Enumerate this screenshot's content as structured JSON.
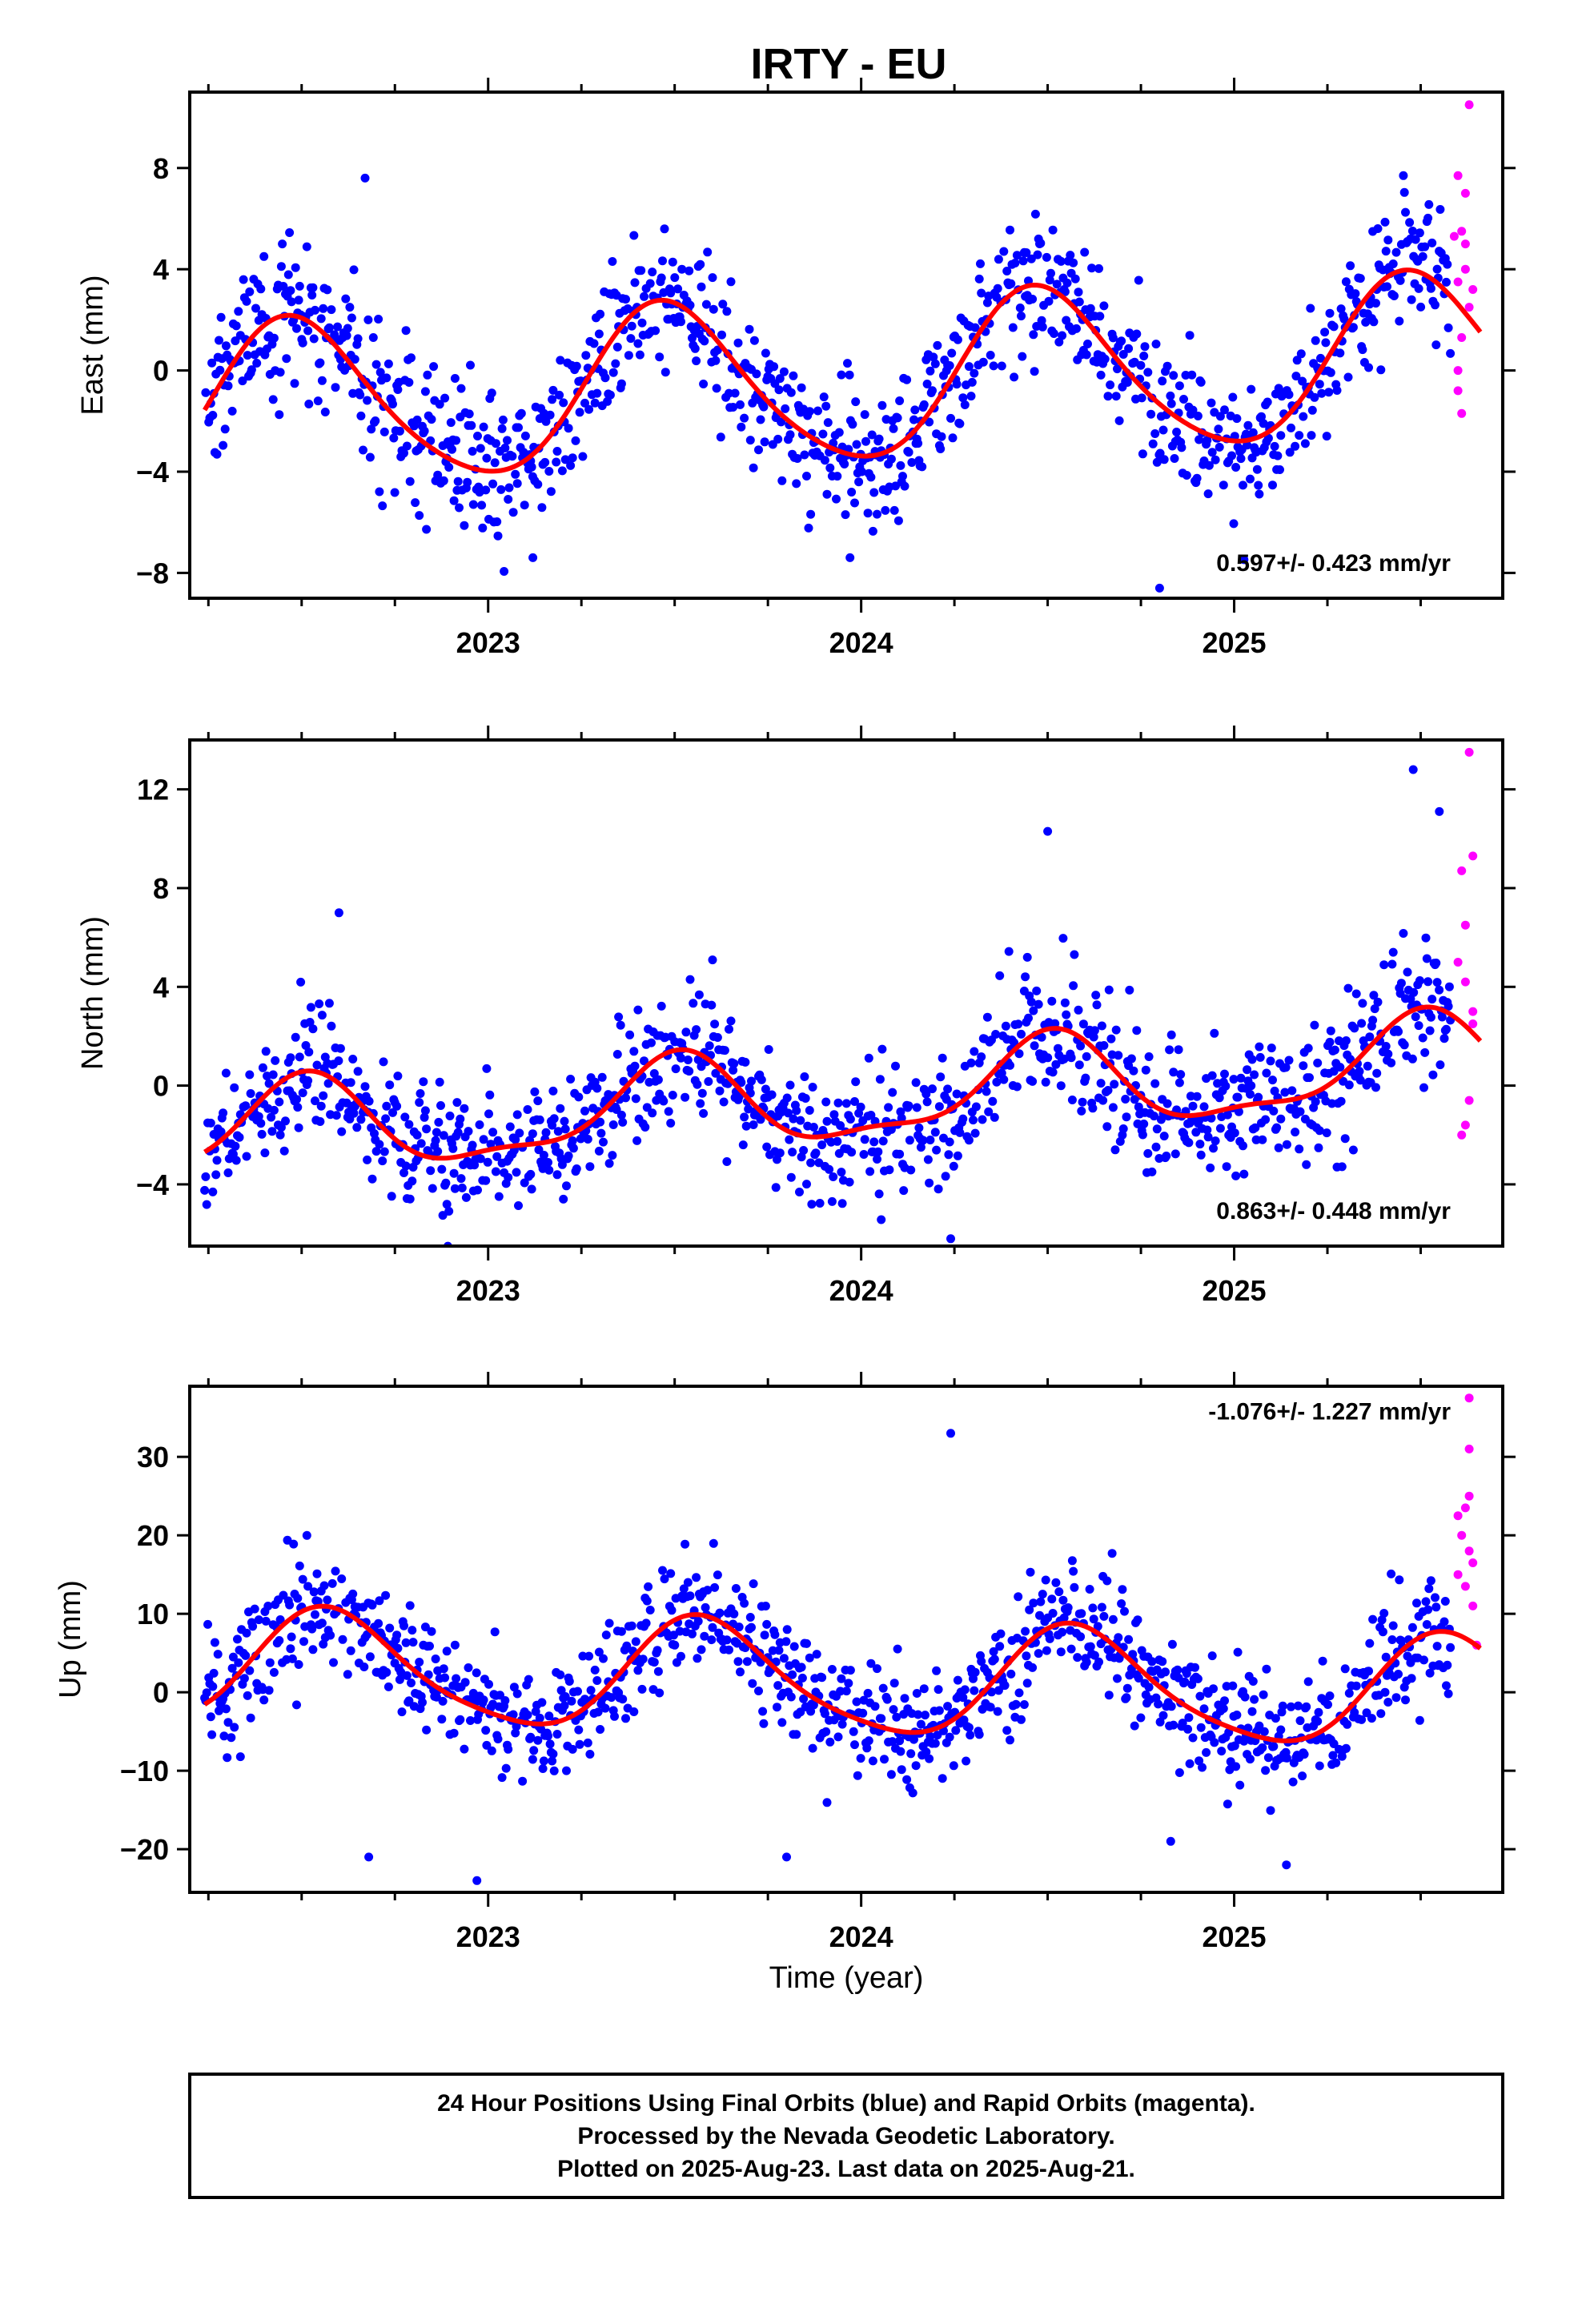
{
  "title": "IRTY - EU",
  "xlabel": "Time (year)",
  "footer": {
    "line1": "24 Hour Positions Using Final Orbits (blue) and Rapid Orbits (magenta).",
    "line2": "Processed by the Nevada Geodetic Laboratory.",
    "line3": "Plotted on 2025-Aug-23. Last data on 2025-Aug-21."
  },
  "colors": {
    "final": "#0000ff",
    "rapid": "#ff00ff",
    "model": "#ff0000"
  },
  "chart_data": [
    {
      "type": "scatter",
      "component": "east",
      "ylabel": "East (mm)",
      "xlim": [
        2022.2,
        2025.72
      ],
      "ylim": [
        -9,
        11
      ],
      "yticks": [
        -8,
        -4,
        0,
        4,
        8
      ],
      "xticks": [
        2023,
        2024,
        2025
      ],
      "rate_label": "0.597+/- 0.423 mm/yr",
      "model": {
        "offset": -0.5,
        "trend": 0.597,
        "ann_amp": 3.2,
        "ann_phase_year": 2022.48,
        "semi_amp": 0.4,
        "semi_phase_year": 2022.3,
        "noise": 1.4
      },
      "outliers": [
        [
          2022.67,
          7.6
        ],
        [
          2023.12,
          -7.4
        ],
        [
          2023.97,
          -7.4
        ],
        [
          2024.8,
          -8.6
        ]
      ],
      "rapid_points": [
        [
          2025.59,
          5.3
        ],
        [
          2025.6,
          7.7
        ],
        [
          2025.61,
          1.3
        ],
        [
          2025.6,
          0.0
        ],
        [
          2025.6,
          -0.8
        ],
        [
          2025.61,
          -1.7
        ],
        [
          2025.62,
          4.0
        ],
        [
          2025.62,
          5.0
        ],
        [
          2025.63,
          2.5
        ],
        [
          2025.63,
          10.5
        ],
        [
          2025.62,
          7.0
        ],
        [
          2025.61,
          5.5
        ],
        [
          2025.64,
          3.2
        ],
        [
          2025.6,
          3.5
        ]
      ]
    },
    {
      "type": "scatter",
      "component": "north",
      "ylabel": "North (mm)",
      "xlim": [
        2022.2,
        2025.72
      ],
      "ylim": [
        -6.5,
        14
      ],
      "yticks": [
        -4,
        0,
        4,
        8,
        12
      ],
      "xticks": [
        2023,
        2024,
        2025
      ],
      "rate_label": "0.863+/- 0.448 mm/yr",
      "model": {
        "offset": -0.6,
        "trend": 0.863,
        "ann_amp": 1.8,
        "ann_phase_year": 2022.5,
        "semi_amp": 0.6,
        "semi_phase_year": 2022.4,
        "noise": 1.3
      },
      "outliers": [
        [
          2022.6,
          7.0
        ],
        [
          2024.24,
          -6.2
        ],
        [
          2024.5,
          10.3
        ],
        [
          2025.48,
          12.8
        ],
        [
          2025.55,
          11.1
        ]
      ],
      "rapid_points": [
        [
          2025.63,
          13.5
        ],
        [
          2025.61,
          8.7
        ],
        [
          2025.62,
          6.5
        ],
        [
          2025.6,
          5.0
        ],
        [
          2025.62,
          4.2
        ],
        [
          2025.64,
          3.0
        ],
        [
          2025.63,
          -0.6
        ],
        [
          2025.62,
          -1.6
        ],
        [
          2025.61,
          -2.0
        ],
        [
          2025.64,
          9.3
        ],
        [
          2025.64,
          2.5
        ]
      ]
    },
    {
      "type": "scatter",
      "component": "up",
      "ylabel": "Up (mm)",
      "xlim": [
        2022.2,
        2025.72
      ],
      "ylim": [
        -25.5,
        39
      ],
      "yticks": [
        -20,
        -10,
        0,
        10,
        20,
        30
      ],
      "xticks": [
        2023,
        2024,
        2025
      ],
      "rate_label": "-1.076+/- 1.227 mm/yr",
      "model": {
        "offset": 1.5,
        "trend": -1.076,
        "ann_amp": 7.0,
        "ann_phase_year": 2022.58,
        "semi_amp": 1.2,
        "semi_phase_year": 2022.4,
        "noise": 3.8
      },
      "outliers": [
        [
          2022.68,
          -21.0
        ],
        [
          2022.97,
          -24.0
        ],
        [
          2023.8,
          -21.0
        ],
        [
          2024.24,
          33.0
        ],
        [
          2024.83,
          -19.0
        ],
        [
          2025.14,
          -22.0
        ]
      ],
      "rapid_points": [
        [
          2025.63,
          37.5
        ],
        [
          2025.63,
          31.0
        ],
        [
          2025.62,
          23.5
        ],
        [
          2025.6,
          22.5
        ],
        [
          2025.61,
          20.0
        ],
        [
          2025.63,
          18.0
        ],
        [
          2025.64,
          16.5
        ],
        [
          2025.62,
          13.5
        ],
        [
          2025.64,
          11.0
        ],
        [
          2025.65,
          6.0
        ],
        [
          2025.63,
          25.0
        ],
        [
          2025.6,
          15.0
        ]
      ]
    }
  ]
}
